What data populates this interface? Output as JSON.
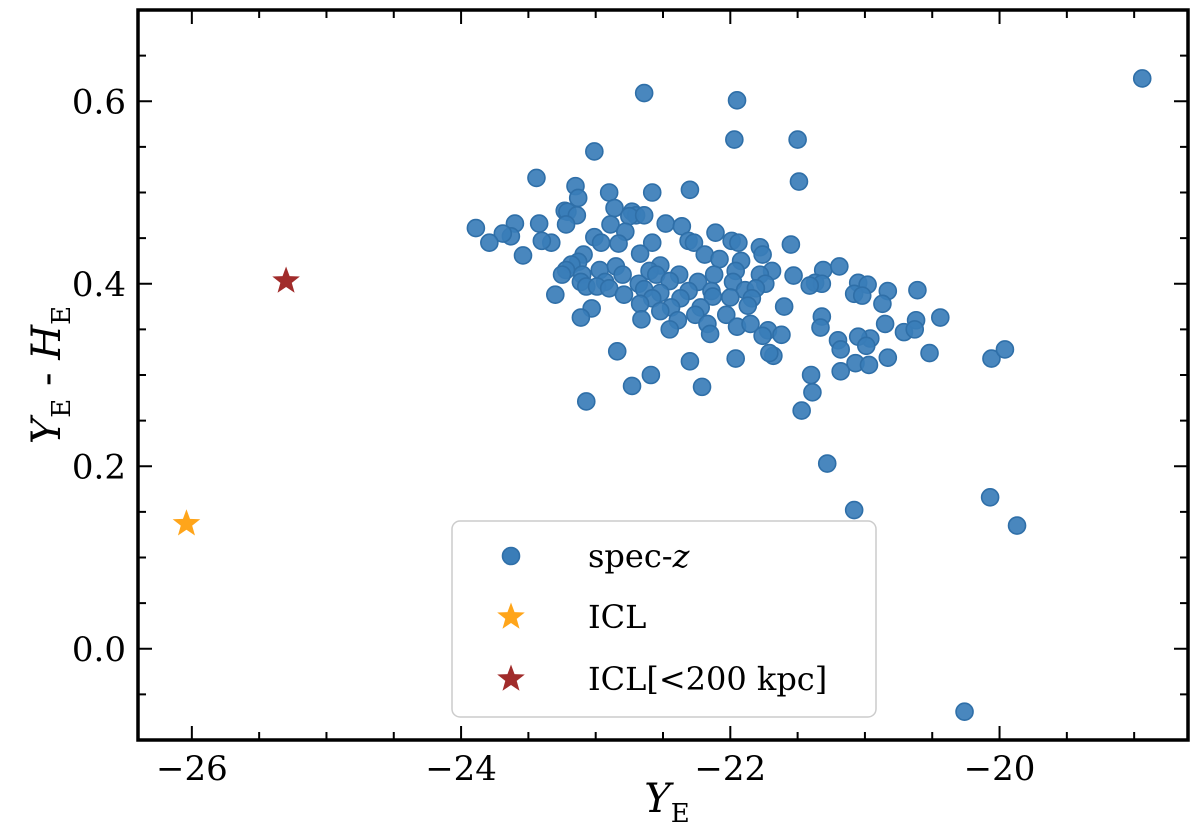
{
  "chart_data": {
    "type": "scatter",
    "xlabel": "Y",
    "xlabel_sub": "E",
    "ylabel_parts": [
      "Y",
      "E",
      " - ",
      "H",
      "E"
    ],
    "xlim": [
      -26.4,
      -18.6
    ],
    "ylim": [
      -0.1,
      0.7
    ],
    "xticks": [
      -26,
      -24,
      -22,
      -20
    ],
    "xtick_labels": [
      "−26",
      "−24",
      "−22",
      "−20"
    ],
    "yticks": [
      0.0,
      0.2,
      0.4,
      0.6
    ],
    "ytick_labels": [
      "0.0",
      "0.2",
      "0.4",
      "0.6"
    ],
    "legend_position": "lower-center",
    "series": [
      {
        "name": "spec-z",
        "legend_label": [
          "spec-",
          "z"
        ],
        "marker": "circle",
        "color": "#3A7DB8",
        "points": [
          [
            -18.94,
            0.625
          ],
          [
            -22.64,
            0.609
          ],
          [
            -21.95,
            0.601
          ],
          [
            -21.97,
            0.558
          ],
          [
            -21.5,
            0.558
          ],
          [
            -23.01,
            0.545
          ],
          [
            -23.44,
            0.516
          ],
          [
            -21.49,
            0.512
          ],
          [
            -23.15,
            0.507
          ],
          [
            -22.58,
            0.5
          ],
          [
            -22.9,
            0.5
          ],
          [
            -23.13,
            0.494
          ],
          [
            -22.86,
            0.483
          ],
          [
            -22.3,
            0.503
          ],
          [
            -23.23,
            0.48
          ],
          [
            -23.21,
            0.479
          ],
          [
            -22.73,
            0.479
          ],
          [
            -23.14,
            0.475
          ],
          [
            -22.7,
            0.475
          ],
          [
            -22.75,
            0.474
          ],
          [
            -22.64,
            0.475
          ],
          [
            -23.42,
            0.466
          ],
          [
            -23.6,
            0.466
          ],
          [
            -23.22,
            0.465
          ],
          [
            -22.48,
            0.466
          ],
          [
            -22.89,
            0.465
          ],
          [
            -23.89,
            0.461
          ],
          [
            -22.36,
            0.463
          ],
          [
            -22.11,
            0.456
          ],
          [
            -22.78,
            0.457
          ],
          [
            -23.63,
            0.452
          ],
          [
            -23.69,
            0.455
          ],
          [
            -23.01,
            0.451
          ],
          [
            -23.33,
            0.445
          ],
          [
            -23.4,
            0.447
          ],
          [
            -23.79,
            0.445
          ],
          [
            -22.96,
            0.445
          ],
          [
            -22.83,
            0.444
          ],
          [
            -22.58,
            0.445
          ],
          [
            -22.31,
            0.447
          ],
          [
            -22.27,
            0.445
          ],
          [
            -21.99,
            0.447
          ],
          [
            -21.94,
            0.445
          ],
          [
            -21.78,
            0.44
          ],
          [
            -21.55,
            0.443
          ],
          [
            -23.54,
            0.431
          ],
          [
            -23.09,
            0.432
          ],
          [
            -22.67,
            0.433
          ],
          [
            -22.19,
            0.432
          ],
          [
            -21.76,
            0.432
          ],
          [
            -22.08,
            0.427
          ],
          [
            -21.92,
            0.425
          ],
          [
            -23.13,
            0.424
          ],
          [
            -23.18,
            0.421
          ],
          [
            -22.52,
            0.42
          ],
          [
            -23.22,
            0.415
          ],
          [
            -22.97,
            0.415
          ],
          [
            -22.85,
            0.419
          ],
          [
            -22.6,
            0.414
          ],
          [
            -21.96,
            0.414
          ],
          [
            -21.69,
            0.414
          ],
          [
            -21.31,
            0.415
          ],
          [
            -21.19,
            0.419
          ],
          [
            -23.25,
            0.41
          ],
          [
            -23.1,
            0.41
          ],
          [
            -22.8,
            0.41
          ],
          [
            -22.55,
            0.41
          ],
          [
            -22.38,
            0.41
          ],
          [
            -22.12,
            0.41
          ],
          [
            -21.78,
            0.41
          ],
          [
            -21.53,
            0.409
          ],
          [
            -23.11,
            0.402
          ],
          [
            -22.93,
            0.402
          ],
          [
            -22.68,
            0.4
          ],
          [
            -22.45,
            0.403
          ],
          [
            -22.24,
            0.402
          ],
          [
            -21.98,
            0.402
          ],
          [
            -21.74,
            0.4
          ],
          [
            -21.37,
            0.401
          ],
          [
            -21.32,
            0.4
          ],
          [
            -21.05,
            0.401
          ],
          [
            -20.98,
            0.399
          ],
          [
            -23.07,
            0.397
          ],
          [
            -22.99,
            0.397
          ],
          [
            -22.9,
            0.395
          ],
          [
            -22.64,
            0.394
          ],
          [
            -22.52,
            0.39
          ],
          [
            -22.31,
            0.392
          ],
          [
            -22.14,
            0.392
          ],
          [
            -21.89,
            0.393
          ],
          [
            -21.81,
            0.395
          ],
          [
            -21.41,
            0.398
          ],
          [
            -21.08,
            0.389
          ],
          [
            -20.83,
            0.392
          ],
          [
            -20.61,
            0.393
          ],
          [
            -23.3,
            0.388
          ],
          [
            -22.79,
            0.388
          ],
          [
            -22.58,
            0.384
          ],
          [
            -22.37,
            0.384
          ],
          [
            -22.13,
            0.386
          ],
          [
            -22.0,
            0.385
          ],
          [
            -21.84,
            0.384
          ],
          [
            -21.02,
            0.387
          ],
          [
            -20.87,
            0.378
          ],
          [
            -23.03,
            0.373
          ],
          [
            -22.67,
            0.378
          ],
          [
            -22.44,
            0.374
          ],
          [
            -22.22,
            0.374
          ],
          [
            -21.87,
            0.376
          ],
          [
            -21.6,
            0.375
          ],
          [
            -22.52,
            0.37
          ],
          [
            -22.26,
            0.366
          ],
          [
            -22.03,
            0.366
          ],
          [
            -21.32,
            0.364
          ],
          [
            -23.11,
            0.363
          ],
          [
            -22.66,
            0.361
          ],
          [
            -22.39,
            0.36
          ],
          [
            -22.17,
            0.356
          ],
          [
            -21.95,
            0.353
          ],
          [
            -21.85,
            0.356
          ],
          [
            -21.72,
            0.349
          ],
          [
            -21.62,
            0.344
          ],
          [
            -21.33,
            0.352
          ],
          [
            -20.96,
            0.34
          ],
          [
            -20.85,
            0.356
          ],
          [
            -20.44,
            0.363
          ],
          [
            -20.62,
            0.36
          ],
          [
            -20.71,
            0.347
          ],
          [
            -20.63,
            0.35
          ],
          [
            -22.45,
            0.35
          ],
          [
            -22.15,
            0.345
          ],
          [
            -21.76,
            0.343
          ],
          [
            -21.2,
            0.338
          ],
          [
            -21.05,
            0.342
          ],
          [
            -20.99,
            0.332
          ],
          [
            -21.18,
            0.328
          ],
          [
            -21.68,
            0.321
          ],
          [
            -21.71,
            0.324
          ],
          [
            -21.96,
            0.318
          ],
          [
            -22.3,
            0.315
          ],
          [
            -22.84,
            0.326
          ],
          [
            -20.83,
            0.319
          ],
          [
            -20.52,
            0.324
          ],
          [
            -20.06,
            0.318
          ],
          [
            -19.96,
            0.328
          ],
          [
            -21.07,
            0.313
          ],
          [
            -20.97,
            0.311
          ],
          [
            -21.18,
            0.304
          ],
          [
            -21.4,
            0.3
          ],
          [
            -22.59,
            0.3
          ],
          [
            -22.73,
            0.288
          ],
          [
            -22.21,
            0.287
          ],
          [
            -21.39,
            0.281
          ],
          [
            -23.07,
            0.271
          ],
          [
            -21.47,
            0.261
          ],
          [
            -21.28,
            0.203
          ],
          [
            -20.07,
            0.166
          ],
          [
            -19.87,
            0.135
          ],
          [
            -21.08,
            0.152
          ],
          [
            -20.26,
            -0.069
          ]
        ]
      },
      {
        "name": "ICL",
        "legend_label": [
          "ICL"
        ],
        "marker": "star",
        "color": "#FFA51A",
        "points": [
          [
            -26.04,
            0.137
          ]
        ]
      },
      {
        "name": "ICL[<200 kpc]",
        "legend_label": [
          "ICL[<200 kpc]"
        ],
        "marker": "star",
        "color": "#A12C2B",
        "points": [
          [
            -25.3,
            0.403
          ]
        ]
      }
    ]
  }
}
